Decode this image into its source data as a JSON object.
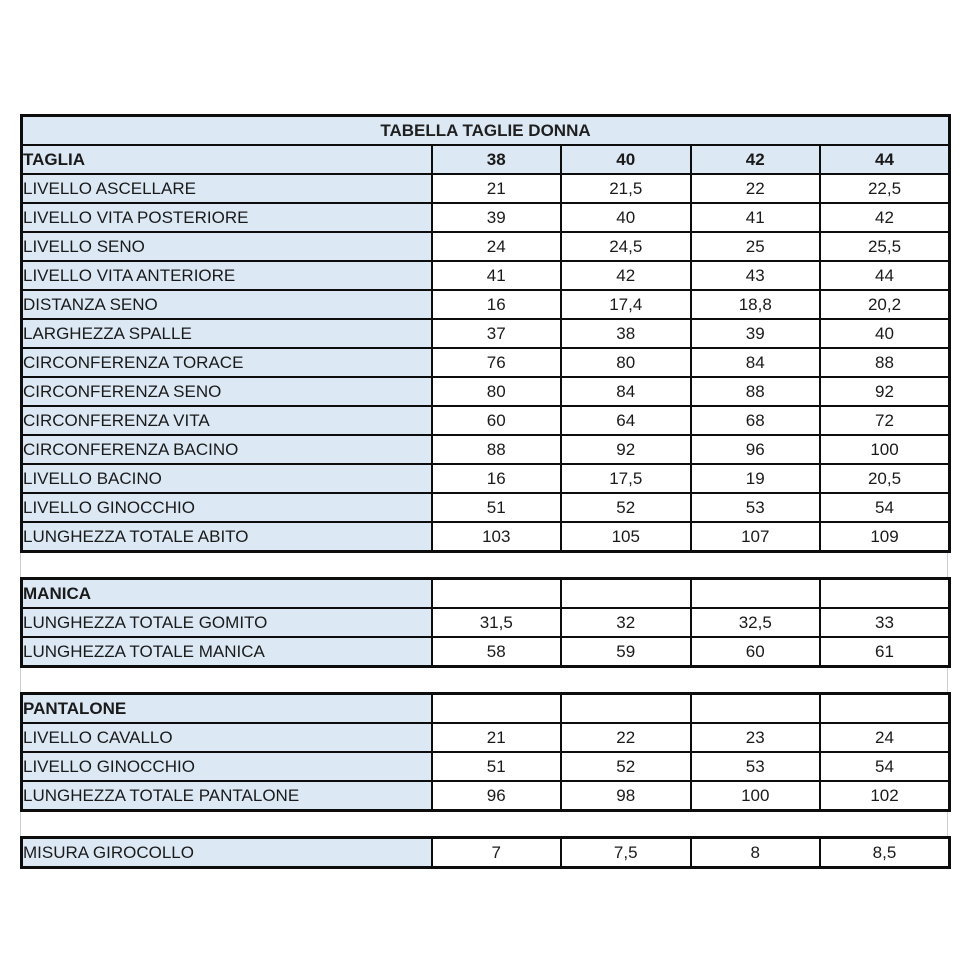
{
  "title": "TABELLA TAGLIE DONNA",
  "sizes_header": {
    "label": "TAGLIA",
    "sizes": [
      "38",
      "40",
      "42",
      "44"
    ]
  },
  "sections": [
    {
      "name": "",
      "rows": [
        {
          "label": "LIVELLO ASCELLARE",
          "values": [
            "21",
            "21,5",
            "22",
            "22,5"
          ]
        },
        {
          "label": "LIVELLO VITA POSTERIORE",
          "values": [
            "39",
            "40",
            "41",
            "42"
          ]
        },
        {
          "label": "LIVELLO SENO",
          "values": [
            "24",
            "24,5",
            "25",
            "25,5"
          ]
        },
        {
          "label": "LIVELLO VITA ANTERIORE",
          "values": [
            "41",
            "42",
            "43",
            "44"
          ]
        },
        {
          "label": "DISTANZA SENO",
          "values": [
            "16",
            "17,4",
            "18,8",
            "20,2"
          ]
        },
        {
          "label": "LARGHEZZA SPALLE",
          "values": [
            "37",
            "38",
            "39",
            "40"
          ]
        },
        {
          "label": "CIRCONFERENZA TORACE",
          "values": [
            "76",
            "80",
            "84",
            "88"
          ]
        },
        {
          "label": "CIRCONFERENZA SENO",
          "values": [
            "80",
            "84",
            "88",
            "92"
          ]
        },
        {
          "label": "CIRCONFERENZA VITA",
          "values": [
            "60",
            "64",
            "68",
            "72"
          ]
        },
        {
          "label": "CIRCONFERENZA BACINO",
          "values": [
            "88",
            "92",
            "96",
            "100"
          ]
        },
        {
          "label": "LIVELLO BACINO",
          "values": [
            "16",
            "17,5",
            "19",
            "20,5"
          ]
        },
        {
          "label": "LIVELLO GINOCCHIO",
          "values": [
            "51",
            "52",
            "53",
            "54"
          ]
        },
        {
          "label": "LUNGHEZZA TOTALE ABITO",
          "values": [
            "103",
            "105",
            "107",
            "109"
          ]
        }
      ]
    },
    {
      "name": "MANICA",
      "rows": [
        {
          "label": "LUNGHEZZA TOTALE GOMITO",
          "values": [
            "31,5",
            "32",
            "32,5",
            "33"
          ]
        },
        {
          "label": "LUNGHEZZA TOTALE MANICA",
          "values": [
            "58",
            "59",
            "60",
            "61"
          ]
        }
      ]
    },
    {
      "name": "PANTALONE",
      "rows": [
        {
          "label": "LIVELLO CAVALLO",
          "values": [
            "21",
            "22",
            "23",
            "24"
          ]
        },
        {
          "label": "LIVELLO GINOCCHIO",
          "values": [
            "51",
            "52",
            "53",
            "54"
          ]
        },
        {
          "label": "LUNGHEZZA TOTALE PANTALONE",
          "values": [
            "96",
            "98",
            "100",
            "102"
          ]
        }
      ]
    },
    {
      "name": "",
      "rows": [
        {
          "label": "MISURA GIROCOLLO",
          "values": [
            "7",
            "7,5",
            "8",
            "8,5"
          ]
        }
      ]
    }
  ],
  "colors": {
    "header_fill": "#dce9f5",
    "border": "#0d0d0d",
    "text": "#1a1a1a",
    "background": "#ffffff"
  }
}
